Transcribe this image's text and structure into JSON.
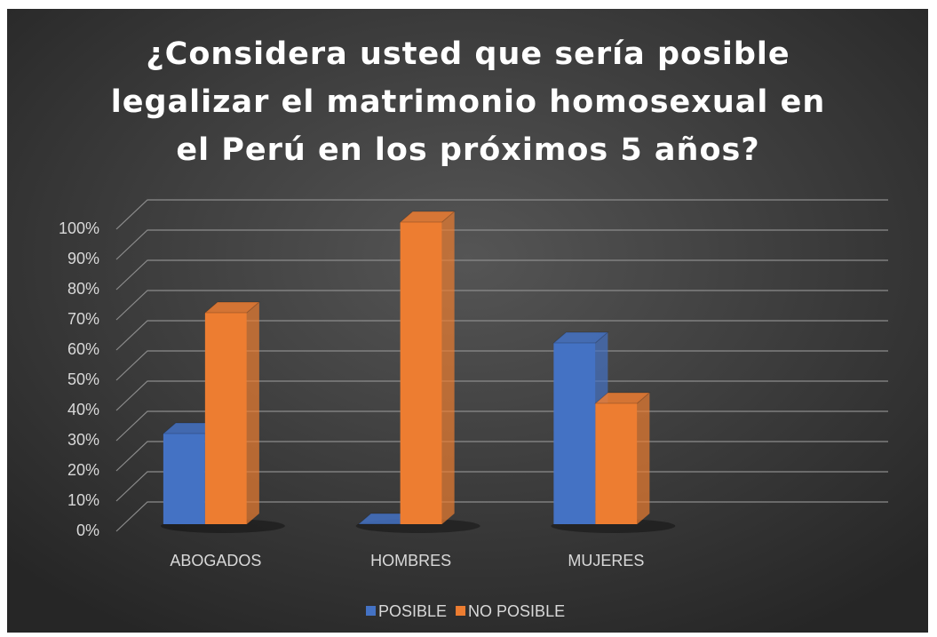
{
  "chart_data": {
    "type": "bar3d",
    "title": [
      "¿Considera usted que sería posible",
      "legalizar el matrimonio homosexual en",
      "el Perú en los próximos 5 años?"
    ],
    "categories": [
      "ABOGADOS",
      "HOMBRES",
      "MUJERES",
      null
    ],
    "series": [
      {
        "name": "POSIBLE",
        "color": "#4472c4",
        "values": [
          30,
          0,
          60,
          null
        ]
      },
      {
        "name": "NO POSIBLE",
        "color": "#ed7d31",
        "values": [
          70,
          100,
          40,
          null
        ]
      }
    ],
    "ylim": [
      0,
      100
    ],
    "yticks": [
      {
        "value": 0,
        "label": "0%"
      },
      {
        "value": 10,
        "label": "10%"
      },
      {
        "value": 20,
        "label": "20%"
      },
      {
        "value": 30,
        "label": "30%"
      },
      {
        "value": 40,
        "label": "40%"
      },
      {
        "value": 50,
        "label": "50%"
      },
      {
        "value": 60,
        "label": "60%"
      },
      {
        "value": 70,
        "label": "70%"
      },
      {
        "value": 80,
        "label": "80%"
      },
      {
        "value": 90,
        "label": "90%"
      },
      {
        "value": 100,
        "label": "100%"
      }
    ],
    "grid": true,
    "legend": "bottom"
  }
}
